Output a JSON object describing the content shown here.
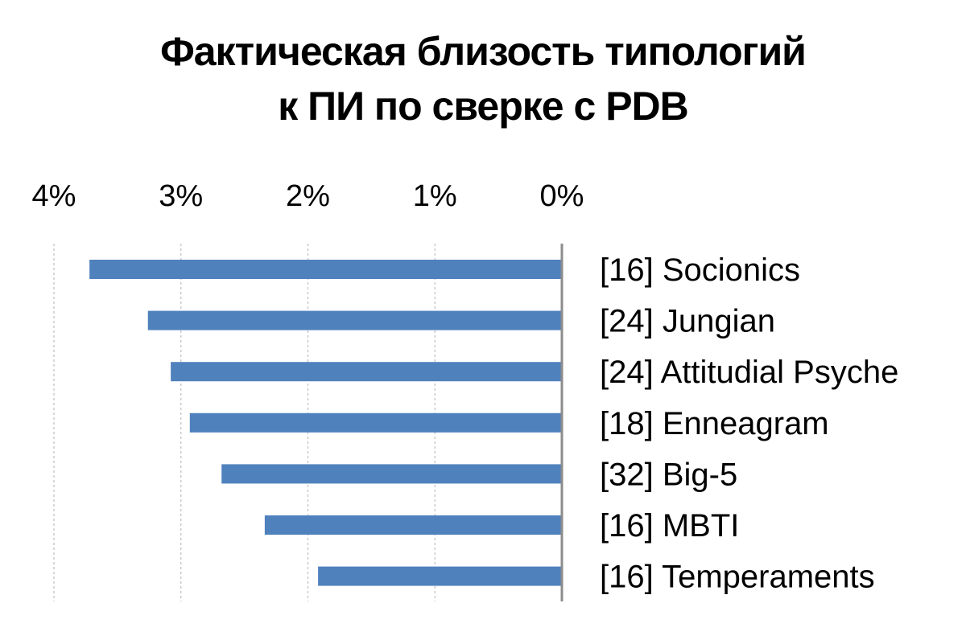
{
  "chart_data": {
    "type": "bar",
    "orientation": "horizontal",
    "x_direction": "reversed",
    "title_lines": [
      "Фактическая близость типологий",
      "к ПИ по сверке с PDB"
    ],
    "xlabel": "",
    "ylabel": "",
    "xlim": [
      0,
      4
    ],
    "x_ticks": [
      4,
      3,
      2,
      1,
      0
    ],
    "x_tick_labels": [
      "4%",
      "3%",
      "2%",
      "1%",
      "0%"
    ],
    "x_axis_position": "top",
    "category_axis_position": "right",
    "grid": true,
    "legend": "none",
    "categories": [
      "[16] Socionics",
      "[24] Jungian",
      "[24] Attitudial Psyche",
      "[18] Enneagram",
      "[32] Big-5",
      "[16] MBTI",
      "[16] Temperaments"
    ],
    "values": [
      3.72,
      3.26,
      3.08,
      2.93,
      2.68,
      2.34,
      1.92
    ],
    "bar_color": "#4f81bd"
  }
}
